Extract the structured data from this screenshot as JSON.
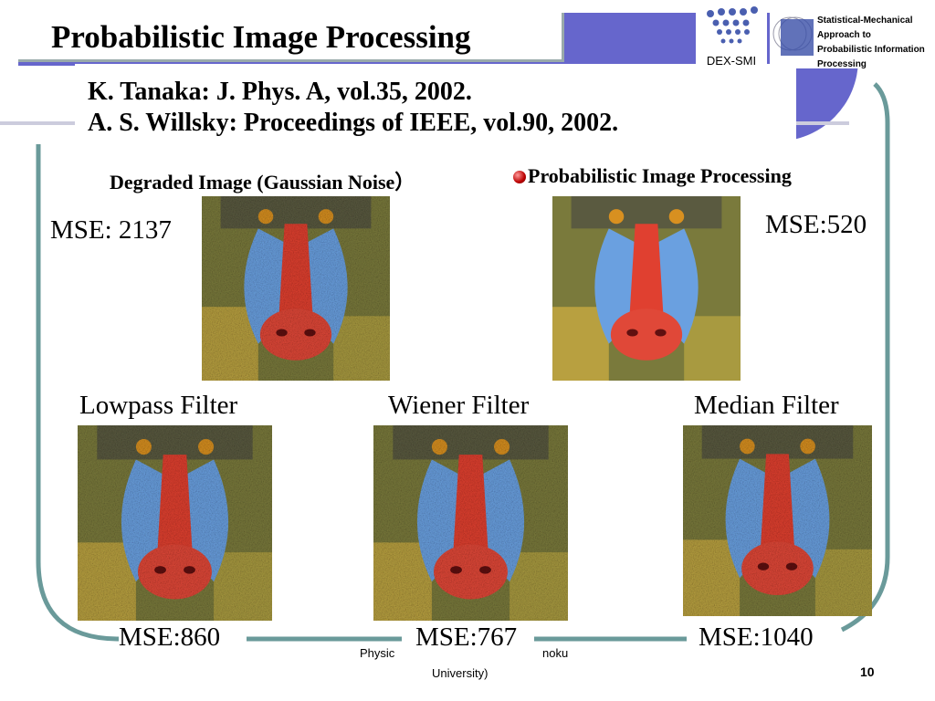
{
  "slide": {
    "title": "Probabilistic Image Processing",
    "citations": [
      "K. Tanaka: J. Phys. A, vol.35, 2002.",
      "A. S. Willsky: Proceedings of IEEE, vol.90, 2002."
    ],
    "logos": {
      "dex_smi": "DEX-SMI",
      "smapip": "Statistical-Mechanical Approach to Probabilistic Information Processing"
    },
    "degraded": {
      "caption": "Degraded Image (Gaussian Noise）",
      "mse": "MSE: 2137"
    },
    "probabilistic": {
      "caption": "Probabilistic Image Processing",
      "mse": "MSE:520",
      "bullet_icon": "red-sphere-bullet"
    },
    "lowpass": {
      "caption": "Lowpass Filter",
      "mse": "MSE:860"
    },
    "wiener": {
      "caption": "Wiener Filter",
      "mse": "MSE:767"
    },
    "median": {
      "caption": "Median Filter",
      "mse": "MSE:1040"
    },
    "footer": {
      "line1a": "Physic",
      "line1b": "noku",
      "line2": "University)",
      "page": "10"
    },
    "colors": {
      "accent_blue": "#6666cc",
      "frame_teal": "#6a9a9a"
    }
  }
}
